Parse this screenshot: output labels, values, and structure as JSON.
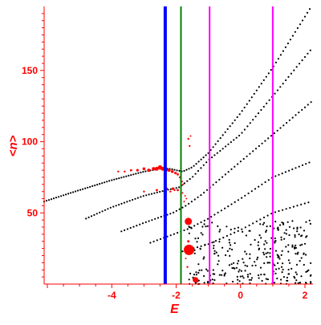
{
  "chart_data": {
    "type": "scatter",
    "title": "",
    "xlabel": "E",
    "ylabel": "<n>",
    "xlim": [
      -6.1,
      2.25
    ],
    "ylim": [
      0,
      195
    ],
    "x_ticks": [
      {
        "value": -4,
        "label": "-4"
      },
      {
        "value": -2,
        "label": "-2"
      },
      {
        "value": 0,
        "label": "0"
      },
      {
        "value": 2,
        "label": "2"
      }
    ],
    "y_ticks": [
      {
        "value": 50,
        "label": "50"
      },
      {
        "value": 100,
        "label": "100"
      },
      {
        "value": 150,
        "label": "150"
      }
    ],
    "grid": false,
    "legend": false,
    "colors": {
      "axes": "#ff0000",
      "black_points": "#000000",
      "red_points": "#ff0000",
      "blue_line": "#0000ff",
      "green_line": "#008000",
      "magenta_line": "#ff00ff"
    },
    "vertical_lines": [
      {
        "x": -2.34,
        "color": "#0000ff",
        "width": 4
      },
      {
        "x": -1.85,
        "color": "#008000",
        "width": 2
      },
      {
        "x": -0.96,
        "color": "#ff00ff",
        "width": 2
      },
      {
        "x": 1.0,
        "color": "#ff00ff",
        "width": 2
      }
    ],
    "series": [
      {
        "points": [
          [
            -6.1,
            58
          ],
          [
            -5.0,
            66
          ],
          [
            -4.0,
            73
          ],
          [
            -3.0,
            79
          ],
          [
            -2.5,
            81
          ],
          [
            -2.2,
            81
          ],
          [
            -1.8,
            79
          ],
          [
            -1.5,
            82
          ],
          [
            -1.0,
            92
          ],
          [
            0.0,
            120
          ],
          [
            1.0,
            152
          ],
          [
            2.2,
            195
          ]
        ]
      },
      {
        "points": [
          [
            -4.8,
            46
          ],
          [
            -4.0,
            54
          ],
          [
            -3.0,
            62
          ],
          [
            -2.3,
            66
          ],
          [
            -1.9,
            68
          ],
          [
            -1.5,
            75
          ],
          [
            -1.0,
            87
          ],
          [
            0.0,
            105
          ],
          [
            1.0,
            132
          ],
          [
            2.2,
            165
          ]
        ]
      },
      {
        "points": [
          [
            -3.7,
            37
          ],
          [
            -3.0,
            43
          ],
          [
            -2.5,
            47
          ],
          [
            -2.1,
            50
          ],
          [
            -1.7,
            55
          ],
          [
            -1.2,
            63
          ],
          [
            0.0,
            86
          ],
          [
            1.0,
            105
          ],
          [
            2.2,
            128
          ]
        ]
      },
      {
        "points": [
          [
            -2.8,
            29
          ],
          [
            -2.2,
            34
          ],
          [
            -1.6,
            39
          ],
          [
            -1.0,
            46
          ],
          [
            0.0,
            60
          ],
          [
            1.0,
            75
          ],
          [
            2.2,
            86
          ]
        ]
      },
      {
        "points": [
          [
            -1.8,
            23
          ],
          [
            -1.0,
            28
          ],
          [
            0.0,
            38
          ],
          [
            1.0,
            50
          ],
          [
            2.2,
            58
          ]
        ]
      }
    ],
    "red_points": [
      [
        -3.8,
        79,
        1.2
      ],
      [
        -3.6,
        79,
        1.2
      ],
      [
        -3.4,
        80,
        1.4
      ],
      [
        -3.2,
        80,
        1.6
      ],
      [
        -3.0,
        81,
        1.8
      ],
      [
        -2.85,
        80,
        2.0
      ],
      [
        -2.7,
        81,
        2.2
      ],
      [
        -2.6,
        81,
        2.4
      ],
      [
        -2.5,
        82,
        2.6
      ],
      [
        -2.42,
        81,
        2.4
      ],
      [
        -2.32,
        80,
        2.2
      ],
      [
        -2.22,
        80,
        2.0
      ],
      [
        -2.12,
        79,
        1.8
      ],
      [
        -2.02,
        78,
        1.6
      ],
      [
        -1.95,
        77,
        1.4
      ],
      [
        -1.88,
        75,
        1.3
      ],
      [
        -1.82,
        72,
        1.2
      ],
      [
        -1.78,
        70,
        1.1
      ],
      [
        -3.0,
        65,
        1.2
      ],
      [
        -2.6,
        66,
        1.4
      ],
      [
        -2.3,
        67,
        1.6
      ],
      [
        -2.1,
        67,
        1.6
      ],
      [
        -1.95,
        66,
        1.4
      ],
      [
        -1.85,
        63,
        1.2
      ],
      [
        -1.72,
        62,
        1.0
      ],
      [
        -1.68,
        60,
        1.0
      ],
      [
        -1.75,
        58,
        1.0
      ],
      [
        -1.8,
        64,
        1.0
      ],
      [
        -2.18,
        65,
        1.2
      ],
      [
        -2.05,
        66,
        1.2
      ],
      [
        -1.62,
        102,
        1.2
      ],
      [
        -1.58,
        97,
        1.2
      ],
      [
        -1.55,
        104,
        1.0
      ],
      [
        -1.62,
        44,
        4.5
      ],
      [
        -1.6,
        24,
        6.5
      ],
      [
        -1.4,
        3,
        3.5
      ],
      [
        -1.62,
        30,
        1.5
      ],
      [
        -1.65,
        12,
        1.2
      ],
      [
        -1.7,
        18,
        1.0
      ]
    ],
    "scatter_cloud": {
      "x_range": [
        -1.6,
        2.2
      ],
      "y_range": [
        0,
        45
      ],
      "count": 300
    }
  }
}
